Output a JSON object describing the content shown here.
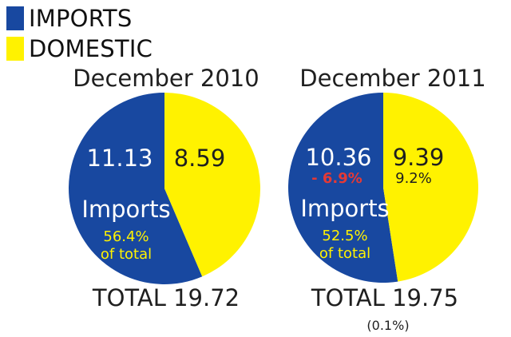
{
  "colors": {
    "imports": "#1848a0",
    "domestic": "#fff200",
    "percent_on_blue": "#fff200",
    "negative": "#e53935",
    "white": "#ffffff",
    "text": "#1f1f1f"
  },
  "legend": [
    {
      "name": "IMPORTS",
      "color": "#1848a0"
    },
    {
      "name": "DOMESTIC",
      "color": "#fff200"
    }
  ],
  "chart_data": [
    {
      "type": "pie",
      "title": "December 2010",
      "slices": [
        {
          "name": "IMPORTS",
          "value": 11.13,
          "label": "11.13"
        },
        {
          "name": "DOMESTIC",
          "value": 8.59,
          "label": "8.59"
        }
      ],
      "annotation_main": "Imports",
      "annotation_sub": [
        "56.4%",
        "of total"
      ],
      "total_label": "TOTAL 19.72",
      "total_change": ""
    },
    {
      "type": "pie",
      "title": "December 2011",
      "slices": [
        {
          "name": "IMPORTS",
          "value": 10.36,
          "label": "10.36",
          "change": "- 6.9%"
        },
        {
          "name": "DOMESTIC",
          "value": 9.39,
          "label": "9.39",
          "change": "9.2%"
        }
      ],
      "annotation_main": "Imports",
      "annotation_sub": [
        "52.5%",
        "of total"
      ],
      "total_label": "TOTAL 19.75",
      "total_change": "(0.1%)"
    }
  ]
}
